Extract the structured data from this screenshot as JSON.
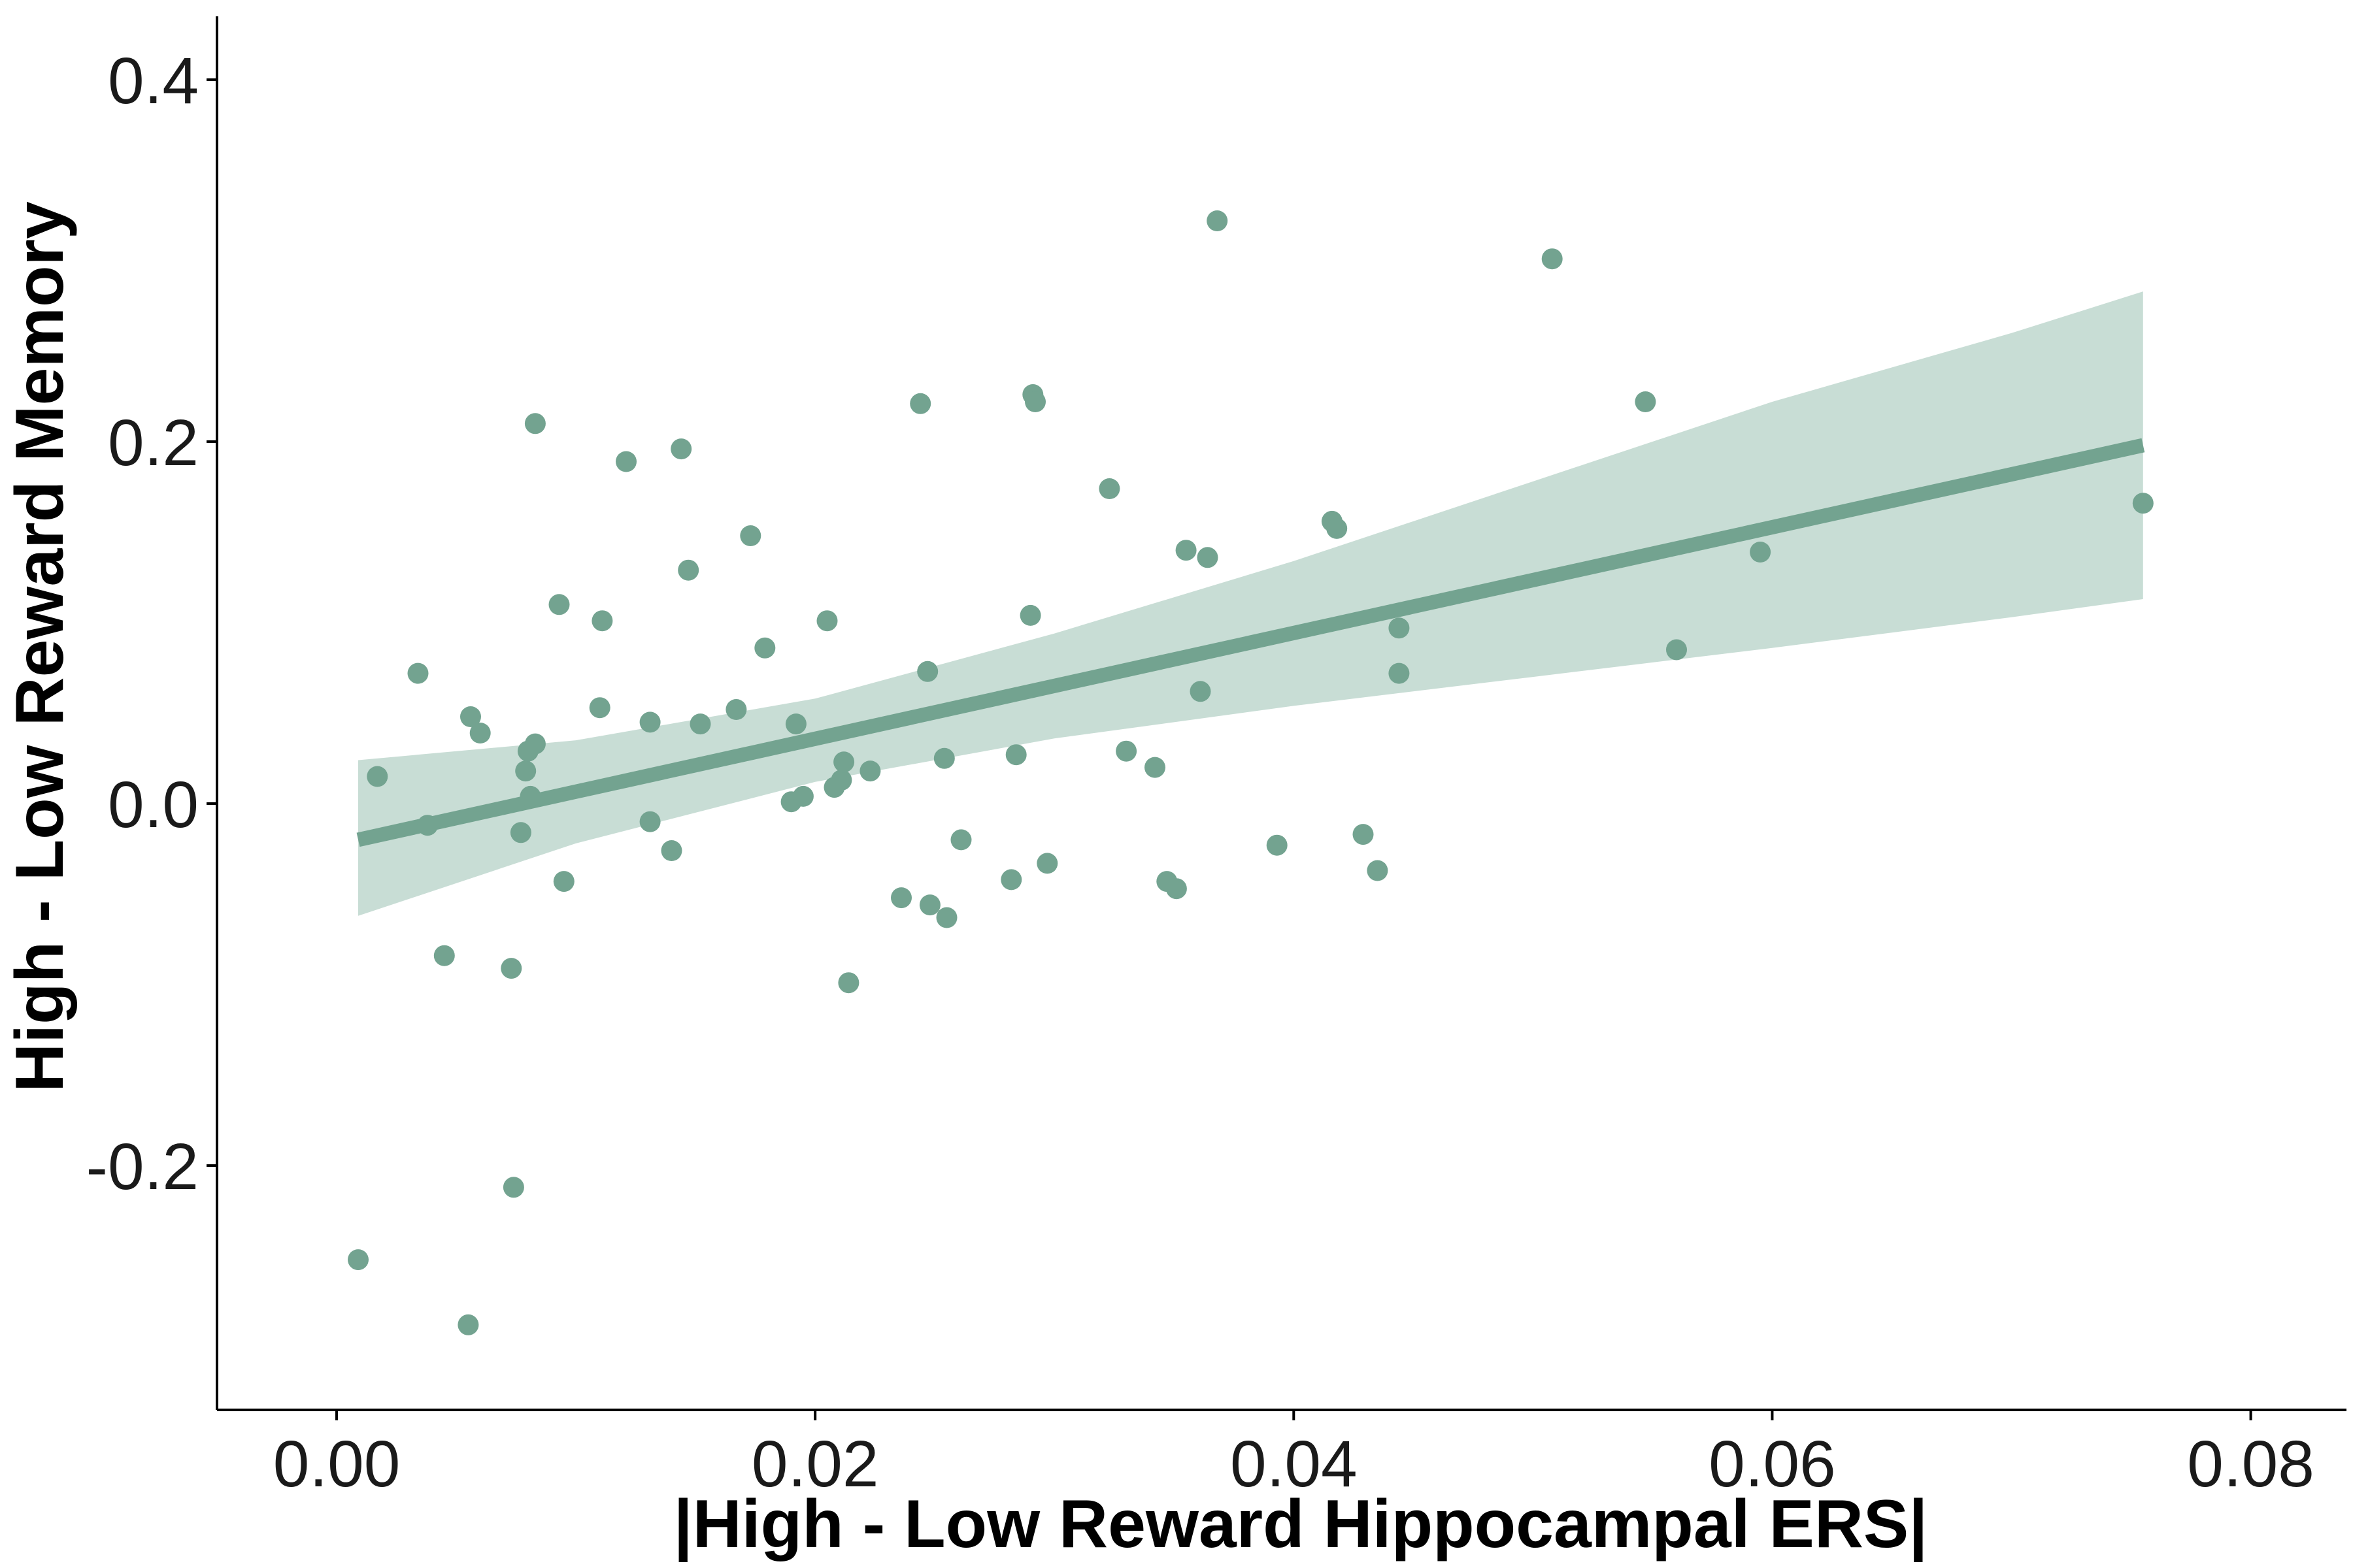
{
  "chart_data": {
    "type": "scatter",
    "title": "",
    "xlabel": "|High - Low Reward Hippocampal ERS|",
    "ylabel": "High - Low Reward Memory",
    "xlim": [
      -0.005,
      0.084
    ],
    "ylim": [
      -0.335,
      0.435
    ],
    "xticks": [
      0.0,
      0.02,
      0.04,
      0.06,
      0.08
    ],
    "xtick_labels": [
      "0.00",
      "0.02",
      "0.04",
      "0.06",
      "0.08"
    ],
    "yticks": [
      -0.2,
      0.0,
      0.2,
      0.4
    ],
    "ytick_labels": [
      "-0.2",
      "0.0",
      "0.2",
      "0.4"
    ],
    "grid": false,
    "legend": "none",
    "colors": {
      "points": "#73a390",
      "line": "#73a390",
      "band": "#c8ddd5",
      "axis": "#000000"
    },
    "points": [
      {
        "x": 0.0009,
        "y": -0.252
      },
      {
        "x": 0.0017,
        "y": 0.015
      },
      {
        "x": 0.0034,
        "y": 0.072
      },
      {
        "x": 0.0038,
        "y": -0.012
      },
      {
        "x": 0.0045,
        "y": -0.084
      },
      {
        "x": 0.0055,
        "y": -0.288
      },
      {
        "x": 0.0056,
        "y": 0.048
      },
      {
        "x": 0.006,
        "y": 0.039
      },
      {
        "x": 0.0073,
        "y": -0.091
      },
      {
        "x": 0.0074,
        "y": -0.212
      },
      {
        "x": 0.0077,
        "y": -0.016
      },
      {
        "x": 0.0079,
        "y": 0.018
      },
      {
        "x": 0.008,
        "y": 0.029
      },
      {
        "x": 0.0081,
        "y": 0.004
      },
      {
        "x": 0.0083,
        "y": 0.033
      },
      {
        "x": 0.0083,
        "y": 0.21
      },
      {
        "x": 0.0093,
        "y": 0.11
      },
      {
        "x": 0.0095,
        "y": -0.043
      },
      {
        "x": 0.011,
        "y": 0.053
      },
      {
        "x": 0.0111,
        "y": 0.101
      },
      {
        "x": 0.0121,
        "y": 0.189
      },
      {
        "x": 0.0131,
        "y": 0.045
      },
      {
        "x": 0.0131,
        "y": -0.01
      },
      {
        "x": 0.014,
        "y": -0.026
      },
      {
        "x": 0.0144,
        "y": 0.196
      },
      {
        "x": 0.0147,
        "y": 0.129
      },
      {
        "x": 0.0152,
        "y": 0.044
      },
      {
        "x": 0.0167,
        "y": 0.052
      },
      {
        "x": 0.0173,
        "y": 0.148
      },
      {
        "x": 0.0179,
        "y": 0.086
      },
      {
        "x": 0.019,
        "y": 0.001
      },
      {
        "x": 0.0192,
        "y": 0.044
      },
      {
        "x": 0.0195,
        "y": 0.004
      },
      {
        "x": 0.0205,
        "y": 0.101
      },
      {
        "x": 0.0208,
        "y": 0.009
      },
      {
        "x": 0.0211,
        "y": 0.013
      },
      {
        "x": 0.0212,
        "y": 0.023
      },
      {
        "x": 0.0214,
        "y": -0.099
      },
      {
        "x": 0.0223,
        "y": 0.018
      },
      {
        "x": 0.0236,
        "y": -0.052
      },
      {
        "x": 0.0244,
        "y": 0.221
      },
      {
        "x": 0.0247,
        "y": 0.073
      },
      {
        "x": 0.0248,
        "y": -0.056
      },
      {
        "x": 0.0254,
        "y": 0.025
      },
      {
        "x": 0.0255,
        "y": -0.063
      },
      {
        "x": 0.0261,
        "y": -0.02
      },
      {
        "x": 0.0282,
        "y": -0.042
      },
      {
        "x": 0.0284,
        "y": 0.027
      },
      {
        "x": 0.029,
        "y": 0.104
      },
      {
        "x": 0.0291,
        "y": 0.226
      },
      {
        "x": 0.0292,
        "y": 0.222
      },
      {
        "x": 0.0297,
        "y": -0.033
      },
      {
        "x": 0.0323,
        "y": 0.174
      },
      {
        "x": 0.033,
        "y": 0.029
      },
      {
        "x": 0.0342,
        "y": 0.02
      },
      {
        "x": 0.0347,
        "y": -0.043
      },
      {
        "x": 0.0351,
        "y": -0.047
      },
      {
        "x": 0.0355,
        "y": 0.14
      },
      {
        "x": 0.0361,
        "y": 0.062
      },
      {
        "x": 0.0364,
        "y": 0.136
      },
      {
        "x": 0.0368,
        "y": 0.322
      },
      {
        "x": 0.0393,
        "y": -0.023
      },
      {
        "x": 0.0416,
        "y": 0.156
      },
      {
        "x": 0.0418,
        "y": 0.152
      },
      {
        "x": 0.0429,
        "y": -0.017
      },
      {
        "x": 0.0435,
        "y": -0.037
      },
      {
        "x": 0.0444,
        "y": 0.097
      },
      {
        "x": 0.0444,
        "y": 0.072
      },
      {
        "x": 0.0508,
        "y": 0.301
      },
      {
        "x": 0.0547,
        "y": 0.222
      },
      {
        "x": 0.056,
        "y": 0.085
      },
      {
        "x": 0.0595,
        "y": 0.139
      },
      {
        "x": 0.0755,
        "y": 0.166
      }
    ],
    "fit_line": {
      "x": [
        0.0009,
        0.0755
      ],
      "y": [
        -0.02,
        0.198
      ]
    },
    "confidence_band": {
      "x": [
        0.0009,
        0.01,
        0.02,
        0.03,
        0.04,
        0.05,
        0.06,
        0.07,
        0.0755
      ],
      "lower": [
        -0.062,
        -0.022,
        0.012,
        0.036,
        0.054,
        0.07,
        0.086,
        0.103,
        0.113
      ],
      "upper": [
        0.024,
        0.035,
        0.058,
        0.094,
        0.134,
        0.178,
        0.222,
        0.26,
        0.283
      ]
    }
  }
}
